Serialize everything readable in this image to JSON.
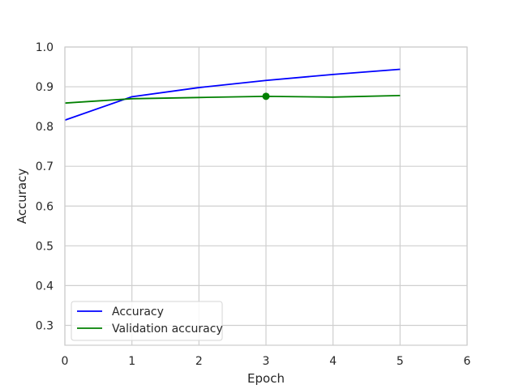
{
  "chart_data": {
    "type": "line",
    "title": "",
    "xlabel": "Epoch",
    "ylabel": "Accuracy",
    "xlim": [
      0,
      6
    ],
    "ylim": [
      0.25,
      1.0
    ],
    "xticks": [
      "0",
      "1",
      "2",
      "3",
      "4",
      "5",
      "6"
    ],
    "yticks": [
      "0.3",
      "0.4",
      "0.5",
      "0.6",
      "0.7",
      "0.8",
      "0.9",
      "1.0"
    ],
    "grid": true,
    "legend_position": "lower-left",
    "series": [
      {
        "name": "Accuracy",
        "color": "#0000ff",
        "x": [
          0,
          1,
          2,
          3,
          4,
          5
        ],
        "y": [
          0.816,
          0.875,
          0.898,
          0.916,
          0.931,
          0.944
        ]
      },
      {
        "name": "Validation accuracy",
        "color": "#008000",
        "x": [
          0,
          1,
          2,
          3,
          4,
          5
        ],
        "y": [
          0.859,
          0.87,
          0.873,
          0.876,
          0.874,
          0.878
        ]
      }
    ],
    "marker": {
      "series": "Validation accuracy",
      "x": 3,
      "y": 0.876,
      "color": "#008000"
    }
  }
}
